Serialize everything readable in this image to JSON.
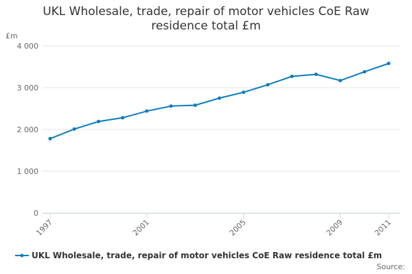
{
  "chart_data": {
    "type": "line",
    "title": "UKL Wholesale, trade, repair of motor vehicles CoE Raw residence total £m",
    "y_unit": "£m",
    "source": "Source:",
    "x": [
      1997,
      1998,
      1999,
      2000,
      2001,
      2002,
      2003,
      2004,
      2005,
      2006,
      2007,
      2008,
      2009,
      2010,
      2011
    ],
    "series": [
      {
        "name": "UKL Wholesale, trade, repair of motor vehicles CoE Raw residence total £m",
        "color": "#0a7bbd",
        "values": [
          1780,
          2010,
          2190,
          2280,
          2440,
          2560,
          2580,
          2750,
          2890,
          3070,
          3270,
          3320,
          3170,
          3380,
          3580
        ]
      }
    ],
    "xlim": [
      1997,
      2011
    ],
    "xticks": [
      1997,
      2001,
      2005,
      2009,
      2011
    ],
    "ylim": [
      0,
      4000
    ],
    "yticks": [
      0,
      {
        "value": 1000,
        "label": "1 000"
      },
      {
        "value": 2000,
        "label": "2 000"
      },
      {
        "value": 3000,
        "label": "3 000"
      },
      {
        "value": 4000,
        "label": "4 000"
      }
    ],
    "grid": true
  }
}
